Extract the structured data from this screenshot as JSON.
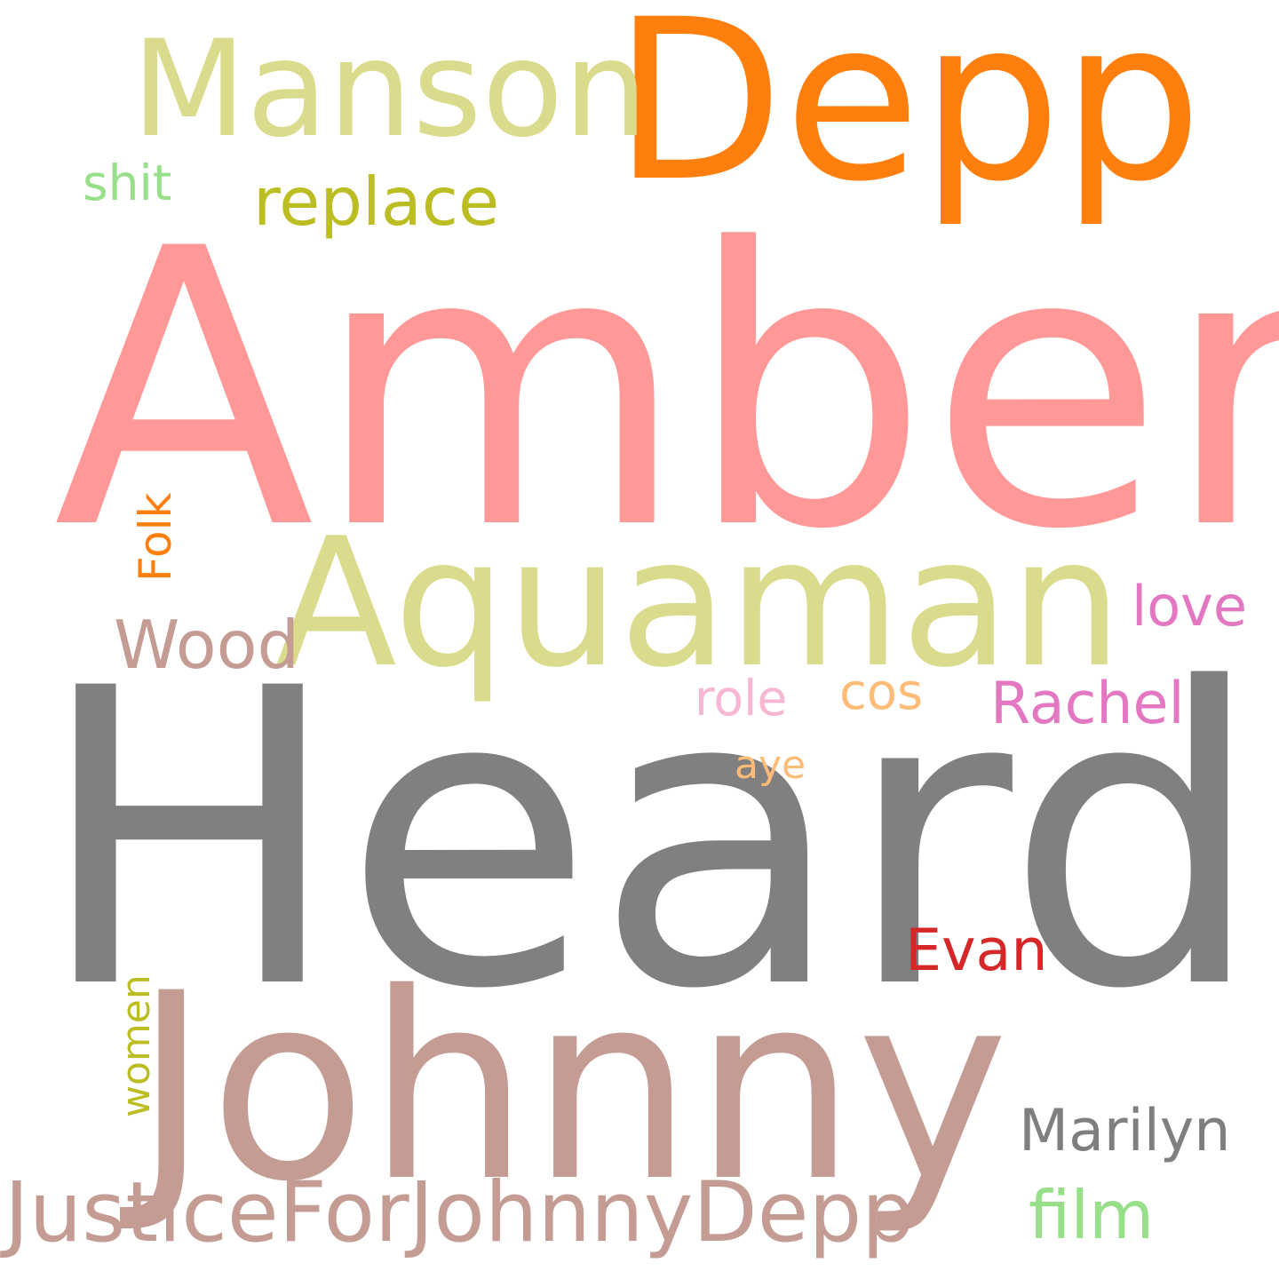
{
  "words": [
    {
      "id": "heard",
      "text": "Heard",
      "color": "#808080"
    },
    {
      "id": "amber",
      "text": "Amber",
      "color": "#ff9896"
    },
    {
      "id": "johnny",
      "text": "Johnny",
      "color": "#c49c94"
    },
    {
      "id": "depp",
      "text": "Depp",
      "color": "#ff7f0e"
    },
    {
      "id": "aquaman",
      "text": "Aquaman",
      "color": "#dbdb8d"
    },
    {
      "id": "manson",
      "text": "Manson",
      "color": "#dbdb8d"
    },
    {
      "id": "justicefor",
      "text": "JusticeForJohnnyDepp",
      "color": "#c49c94"
    },
    {
      "id": "replace",
      "text": "replace",
      "color": "#bcbd22"
    },
    {
      "id": "marilyn",
      "text": "Marilyn",
      "color": "#7f7f7f"
    },
    {
      "id": "wood",
      "text": "Wood",
      "color": "#c49c94"
    },
    {
      "id": "rachel",
      "text": "Rachel",
      "color": "#e377c2"
    },
    {
      "id": "evan",
      "text": "Evan",
      "color": "#d62728"
    },
    {
      "id": "film",
      "text": "film",
      "color": "#98df8a"
    },
    {
      "id": "love",
      "text": "love",
      "color": "#e377c2"
    },
    {
      "id": "shit",
      "text": "shit",
      "color": "#98df8a"
    },
    {
      "id": "folk",
      "text": "Folk",
      "color": "#ff7f0e"
    },
    {
      "id": "women",
      "text": "women",
      "color": "#bcbd22"
    },
    {
      "id": "cos",
      "text": "cos",
      "color": "#ffbb78"
    },
    {
      "id": "role",
      "text": "role",
      "color": "#f7b6d2"
    },
    {
      "id": "aye",
      "text": "aye",
      "color": "#ffbb78"
    }
  ]
}
